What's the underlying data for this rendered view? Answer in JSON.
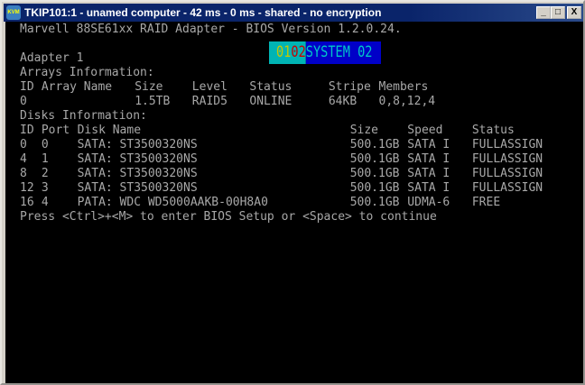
{
  "window": {
    "title": "TKIP101:1 - unamed computer - 42 ms - 0 ms - shared - no encryption",
    "icon": "kvm-icon",
    "minimize": "_",
    "maximize": "□",
    "close": "X"
  },
  "bios": {
    "header": "Marvell 88SE61xx RAID Adapter - BIOS Version 1.2.0.24.",
    "badge": {
      "part1": "01",
      "part2": "02",
      "part3": "SYSTEM 02",
      "colors": {
        "part1": "#c8c800",
        "part2": "#c80000",
        "part3": "#00c8c8",
        "bg1": "#00b4b4",
        "bg2": "#0000c8"
      }
    },
    "adapter": "Adapter 1",
    "arrays_title": "Arrays Information:",
    "arrays_headers": [
      "ID",
      "Array Name",
      "Size",
      "Level",
      "Status",
      "Stripe",
      "Members"
    ],
    "arrays": [
      [
        "0",
        "",
        "1.5TB",
        "RAID5",
        "ONLINE",
        "64KB",
        "0,8,12,4"
      ]
    ],
    "disks_title": "Disks Information:",
    "disks_headers": [
      "ID",
      "Port",
      "Disk Name",
      "Size",
      "Speed",
      "Status"
    ],
    "disks": [
      [
        "0",
        "0",
        "SATA: ST3500320NS",
        "500.1GB",
        "SATA I",
        "FULLASSIGN"
      ],
      [
        "4",
        "1",
        "SATA: ST3500320NS",
        "500.1GB",
        "SATA I",
        "FULLASSIGN"
      ],
      [
        "8",
        "2",
        "SATA: ST3500320NS",
        "500.1GB",
        "SATA I",
        "FULLASSIGN"
      ],
      [
        "12",
        "3",
        "SATA: ST3500320NS",
        "500.1GB",
        "SATA I",
        "FULLASSIGN"
      ],
      [
        "16",
        "4",
        "PATA: WDC WD5000AAKB-00H8A0",
        "500.1GB",
        "UDMA-6",
        "FREE"
      ]
    ],
    "prompt": "Press <Ctrl>+<M> to enter BIOS Setup or <Space> to continue"
  }
}
